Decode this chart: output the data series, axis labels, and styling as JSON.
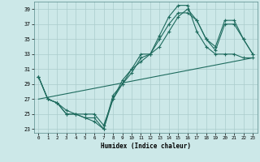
{
  "xlabel": "Humidex (Indice chaleur)",
  "bg_color": "#cce8e8",
  "grid_color": "#aacccc",
  "line_color": "#1e6b5e",
  "xlim": [
    -0.5,
    23.5
  ],
  "ylim": [
    22.5,
    40.0
  ],
  "yticks": [
    23,
    25,
    27,
    29,
    31,
    33,
    35,
    37,
    39
  ],
  "xticks": [
    0,
    1,
    2,
    3,
    4,
    5,
    6,
    7,
    8,
    9,
    10,
    11,
    12,
    13,
    14,
    15,
    16,
    17,
    18,
    19,
    20,
    21,
    22,
    23
  ],
  "lines": [
    {
      "markers": true,
      "x": [
        0,
        1,
        2,
        3,
        4,
        5,
        6,
        7,
        8,
        9,
        10,
        11,
        12,
        13,
        14,
        15,
        16,
        17,
        18,
        19,
        20,
        21,
        22,
        23
      ],
      "y": [
        30,
        27,
        26.5,
        25,
        25,
        24.5,
        24,
        23,
        27,
        29.5,
        31,
        33,
        33,
        35.5,
        38,
        39.5,
        39.5,
        36,
        34,
        33,
        33,
        33,
        32.5,
        32.5
      ]
    },
    {
      "markers": true,
      "x": [
        0,
        1,
        2,
        3,
        4,
        5,
        6,
        7,
        8,
        9,
        10,
        11,
        12,
        13,
        14,
        15,
        16,
        17,
        18,
        19,
        20,
        21,
        22,
        23
      ],
      "y": [
        30,
        27,
        26.5,
        25,
        25,
        24.5,
        24.5,
        23,
        27.5,
        29,
        30.5,
        32.5,
        33,
        35,
        37,
        38.5,
        38.5,
        37.5,
        35,
        33.5,
        37,
        37,
        35,
        33
      ]
    },
    {
      "markers": false,
      "x": [
        0,
        23
      ],
      "y": [
        27,
        32.5
      ]
    },
    {
      "markers": true,
      "x": [
        0,
        1,
        2,
        3,
        4,
        5,
        6,
        7,
        8,
        9,
        10,
        11,
        12,
        13,
        14,
        15,
        16,
        17,
        18,
        19,
        20,
        21,
        22,
        23
      ],
      "y": [
        30,
        27,
        26.5,
        25.5,
        25,
        25,
        25,
        23.5,
        27,
        29,
        31,
        32,
        33,
        34,
        36,
        38,
        39,
        37.5,
        35,
        34,
        37.5,
        37.5,
        35,
        33
      ]
    }
  ]
}
